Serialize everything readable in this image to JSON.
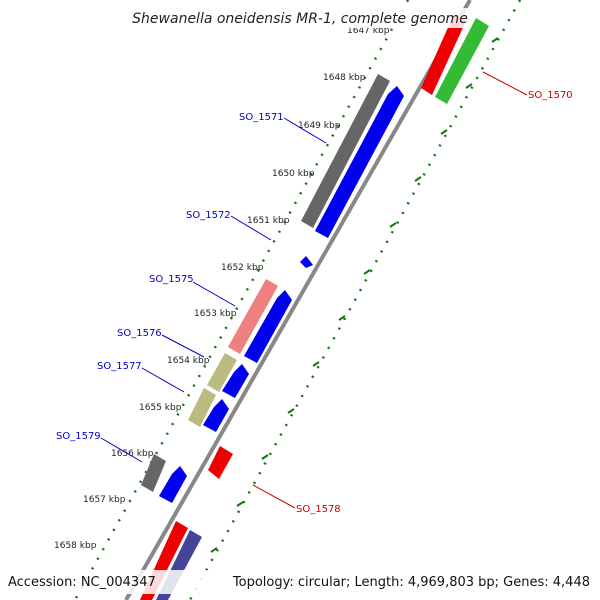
{
  "title": "Shewanella oneidensis MR-1, complete genome",
  "footer": {
    "accession": "Accession: NC_004347",
    "summary": "Topology: circular; Length: 4,969,803 bp; Genes: 4,448"
  },
  "ticks": [
    "1647 kbp",
    "1648 kbp",
    "1649 kbp",
    "1650 kbp",
    "1651 kbp",
    "1652 kbp",
    "1653 kbp",
    "1654 kbp",
    "1655 kbp",
    "1656 kbp",
    "1657 kbp",
    "1658 kbp"
  ],
  "gene_labels": {
    "so1570": "SO_1570",
    "so1571": "SO_1571",
    "so1572": "SO_1572",
    "so1575": "SO_1575",
    "so1576": "SO_1576",
    "so1577": "SO_1577",
    "so1578": "SO_1578",
    "so1579": "SO_1579"
  },
  "colors": {
    "forward_label": "#0000cc",
    "reverse_label": "#cc0000",
    "cds_blue": "#0000ee",
    "cds_red": "#ee0000",
    "cds_green": "#33bb33",
    "cds_gray": "#666666",
    "cds_pink": "#ee8080",
    "cds_khaki": "#bbbb80",
    "cds_slate": "#444499",
    "backbone": "#888888",
    "tick_dots": "#117711"
  }
}
